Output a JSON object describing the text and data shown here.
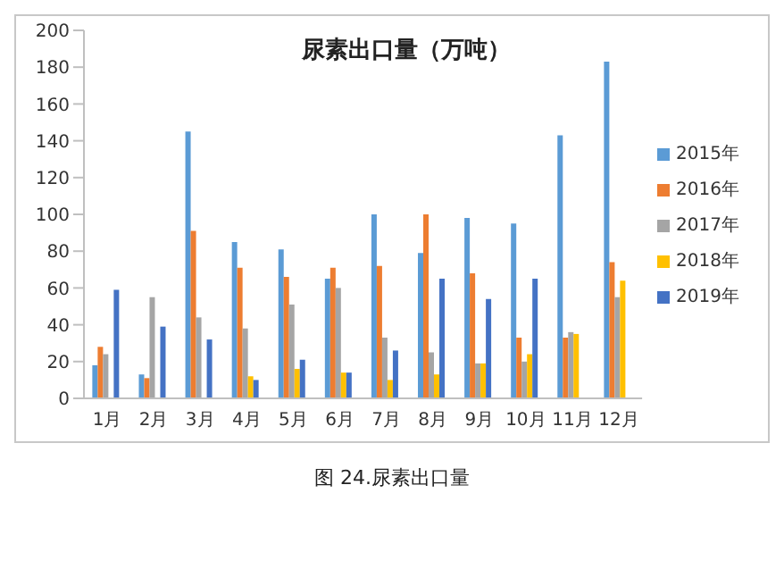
{
  "chart_data": {
    "type": "bar",
    "title": "尿素出口量（万吨）",
    "annotations": [
      "图 24.尿素出口量"
    ],
    "categories": [
      "1月",
      "2月",
      "3月",
      "4月",
      "5月",
      "6月",
      "7月",
      "8月",
      "9月",
      "10月",
      "11月",
      "12月"
    ],
    "series": [
      {
        "name": "2015年",
        "color": "#5b9bd5",
        "values": [
          18,
          13,
          145,
          85,
          81,
          65,
          100,
          79,
          98,
          95,
          143,
          183
        ]
      },
      {
        "name": "2016年",
        "color": "#ed7d31",
        "values": [
          28,
          11,
          91,
          71,
          66,
          71,
          72,
          100,
          68,
          33,
          33,
          74
        ]
      },
      {
        "name": "2017年",
        "color": "#a5a5a5",
        "values": [
          24,
          55,
          44,
          38,
          51,
          60,
          33,
          25,
          19,
          20,
          36,
          55
        ]
      },
      {
        "name": "2018年",
        "color": "#ffc000",
        "values": [
          null,
          null,
          null,
          12,
          16,
          14,
          10,
          13,
          19,
          24,
          35,
          64
        ]
      },
      {
        "name": "2019年",
        "color": "#4472c4",
        "values": [
          59,
          39,
          32,
          10,
          21,
          14,
          26,
          65,
          54,
          65,
          null,
          null
        ]
      }
    ],
    "ylim": [
      0,
      200
    ],
    "yticks": [
      0,
      20,
      40,
      60,
      80,
      100,
      120,
      140,
      160,
      180,
      200
    ],
    "grid": false,
    "legend": "right"
  }
}
